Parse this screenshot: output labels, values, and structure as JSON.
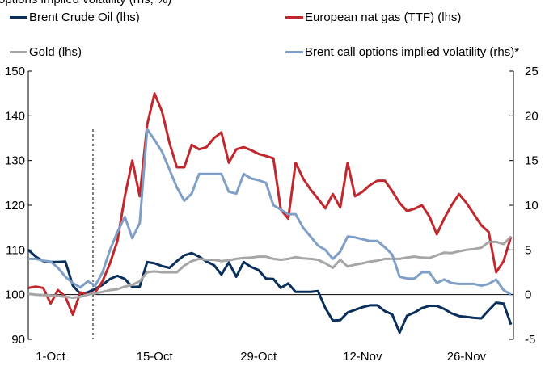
{
  "chart_data": {
    "type": "line",
    "title": "options implied volatility (rhs, %)",
    "categories": [
      null,
      null,
      null,
      "1-Oct",
      null,
      null,
      null,
      null,
      null,
      null,
      null,
      null,
      null,
      null,
      null,
      null,
      null,
      "15-Oct",
      null,
      null,
      null,
      null,
      null,
      null,
      null,
      null,
      null,
      null,
      null,
      null,
      null,
      "29-Oct",
      null,
      null,
      null,
      null,
      null,
      null,
      null,
      null,
      null,
      null,
      null,
      null,
      null,
      "12-Nov",
      null,
      null,
      null,
      null,
      null,
      null,
      null,
      null,
      null,
      null,
      null,
      null,
      null,
      "26-Nov",
      null,
      null,
      null,
      null,
      null,
      null
    ],
    "ylim": [
      90,
      150
    ],
    "yticks": [
      90,
      100,
      110,
      120,
      130,
      140,
      150
    ],
    "y2lim": [
      -5,
      25
    ],
    "y2ticks": [
      -5,
      0,
      5,
      10,
      15,
      20,
      25
    ],
    "series": [
      {
        "name": "Brent Crude Oil (lhs)",
        "color": "#0b2f5b",
        "values": [
          110,
          108.5,
          107.5,
          107.3,
          107.3,
          107.4,
          102,
          100.2,
          100.5,
          101.3,
          102.2,
          103.5,
          104.2,
          103.5,
          101.7,
          101.8,
          107.3,
          107,
          106.4,
          106,
          107.5,
          108.8,
          109.3,
          108.5,
          107.4,
          106.6,
          104.5,
          107.2,
          104,
          107.3,
          106.2,
          105.5,
          103.6,
          103.5,
          101.5,
          102.5,
          100.6,
          100.6,
          100.6,
          100.8,
          97,
          94.2,
          94.3,
          96,
          96.6,
          97.2,
          97.6,
          97.6,
          96.3,
          95.6,
          91.5,
          95.3,
          96,
          97,
          97.5,
          97.5,
          96.8,
          95.8,
          95.2,
          95,
          94.8,
          94.7,
          96.5,
          98.2,
          98,
          93.3
        ]
      },
      {
        "name": "European nat gas (TTF) (lhs)",
        "color": "#c0282d",
        "values": [
          101.5,
          101.8,
          101.5,
          98,
          101,
          99.5,
          95.5,
          100.5,
          100,
          100.5,
          103,
          107,
          112,
          122,
          130,
          122,
          138,
          145,
          141,
          134,
          128.5,
          128.5,
          133.5,
          132.5,
          133,
          135,
          136.3,
          129.5,
          132.5,
          133,
          132.3,
          131.5,
          131,
          130.5,
          119,
          117,
          129.5,
          126,
          123.5,
          121.5,
          119.3,
          122.5,
          119.5,
          129.5,
          122,
          123,
          124.5,
          125.5,
          125.5,
          123.2,
          120.5,
          118.7,
          119.2,
          120,
          117.5,
          113.5,
          117,
          120,
          122.5,
          120.5,
          118,
          115.5,
          114,
          105,
          107.5,
          113
        ]
      },
      {
        "name": "Gold (lhs)",
        "color": "#a6a6a6",
        "values": [
          100.2,
          100,
          99.9,
          99.8,
          99.7,
          99.5,
          99.3,
          99.5,
          100,
          100.3,
          100.6,
          101,
          101.2,
          101.8,
          102.2,
          103,
          105,
          105.2,
          105,
          105,
          105,
          106.5,
          107.5,
          108,
          107.8,
          107.8,
          107.5,
          107.7,
          108,
          108.2,
          108.3,
          108.5,
          108.5,
          108,
          107.8,
          108,
          108.4,
          108.1,
          108,
          107.8,
          107,
          106,
          107.8,
          106.3,
          106.7,
          107,
          107.4,
          107.6,
          108,
          108,
          108,
          108.3,
          108.5,
          108.3,
          108.2,
          108.8,
          109.4,
          109.3,
          109.7,
          110,
          110.2,
          110.5,
          111.8,
          111.8,
          111.3,
          113
        ]
      },
      {
        "name": "Brent call options implied volatility (rhs)*",
        "color": "#7f9fc7",
        "axis": "y2",
        "values": [
          4,
          4,
          3.8,
          3.7,
          3,
          2,
          1.3,
          0.8,
          1.5,
          1,
          2.5,
          5,
          7,
          8.7,
          6.3,
          8,
          18.5,
          17.3,
          16,
          14,
          12,
          10.5,
          11.3,
          13.5,
          13.5,
          13.5,
          13.5,
          11.5,
          11.3,
          13.5,
          13,
          12.8,
          12.5,
          10,
          9.5,
          9,
          9,
          7.5,
          6.5,
          5.5,
          5,
          4,
          4.8,
          6.5,
          6.4,
          6.2,
          6,
          6,
          5.3,
          4.5,
          2,
          1.8,
          1.8,
          2.5,
          2.5,
          1.3,
          1.7,
          1.3,
          1.2,
          1.2,
          1.2,
          1,
          1.2,
          1.7,
          0.5,
          0
        ]
      }
    ]
  }
}
